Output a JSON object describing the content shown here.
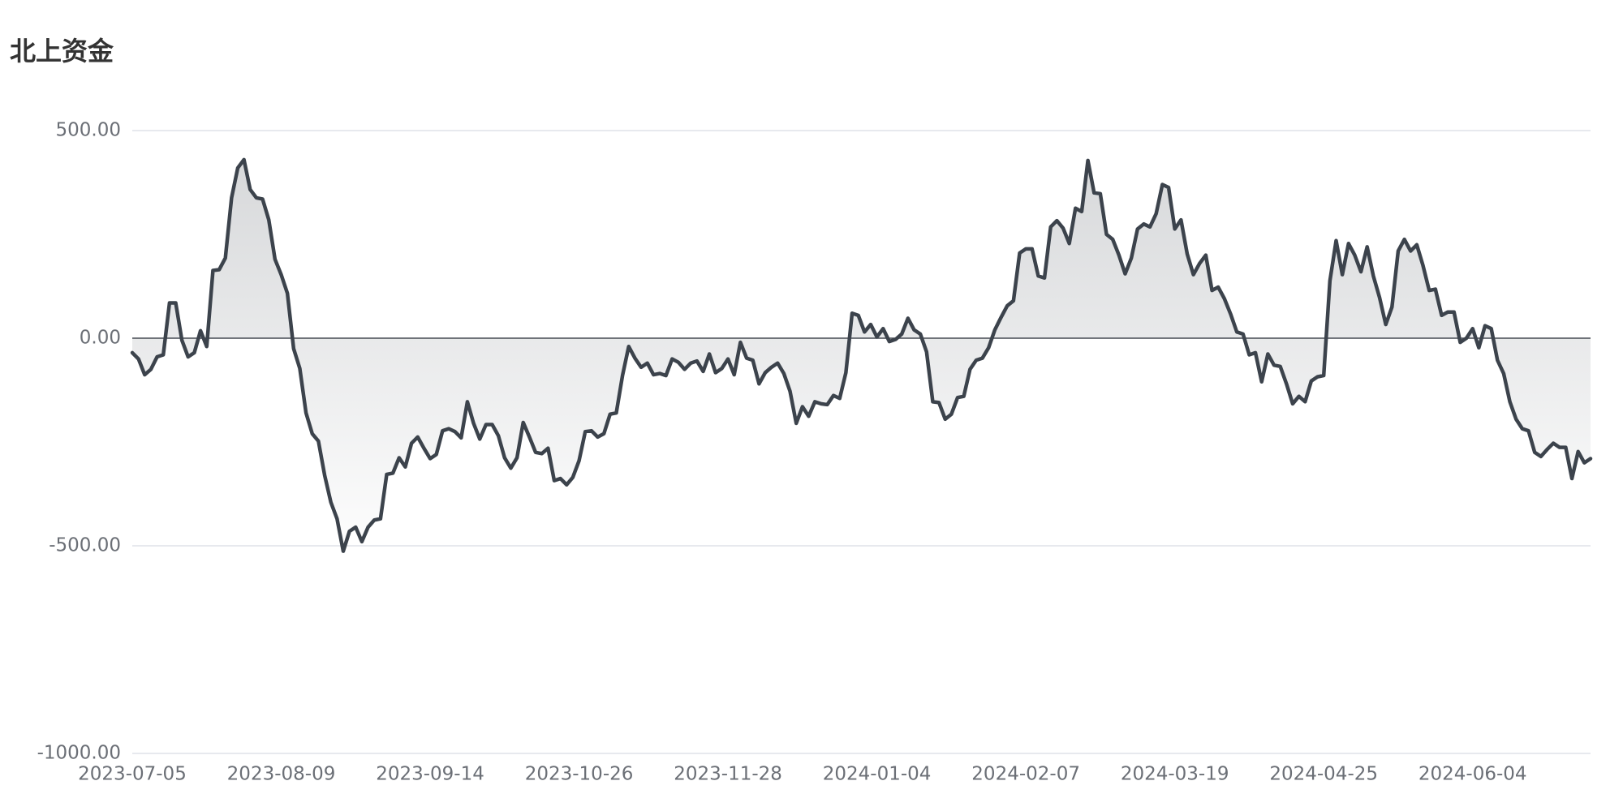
{
  "chart_data": {
    "type": "line",
    "title": "北上资金",
    "color": "#3c434c",
    "grid": true,
    "area": true,
    "ylim": [
      -1000,
      500
    ],
    "yticks": [
      {
        "value": 500,
        "label": "500.00"
      },
      {
        "value": 0,
        "label": "0.00"
      },
      {
        "value": -500,
        "label": "-500.00"
      },
      {
        "value": -1000,
        "label": "-1000.00"
      }
    ],
    "categories": [
      "2023-07-05",
      null,
      null,
      null,
      null,
      null,
      null,
      null,
      null,
      null,
      null,
      null,
      null,
      null,
      null,
      null,
      null,
      null,
      null,
      null,
      null,
      null,
      null,
      null,
      "2023-08-09",
      null,
      null,
      null,
      null,
      null,
      null,
      null,
      null,
      null,
      null,
      null,
      null,
      null,
      null,
      null,
      null,
      null,
      null,
      null,
      null,
      null,
      null,
      null,
      "2023-09-14",
      null,
      null,
      null,
      null,
      null,
      null,
      null,
      null,
      null,
      null,
      null,
      null,
      null,
      null,
      null,
      null,
      null,
      null,
      null,
      null,
      null,
      null,
      null,
      "2023-10-26",
      null,
      null,
      null,
      null,
      null,
      null,
      null,
      null,
      null,
      null,
      null,
      null,
      null,
      null,
      null,
      null,
      null,
      null,
      null,
      null,
      null,
      null,
      null,
      "2023-11-28",
      null,
      null,
      null,
      null,
      null,
      null,
      null,
      null,
      null,
      null,
      null,
      null,
      null,
      null,
      null,
      null,
      null,
      null,
      null,
      null,
      null,
      null,
      null,
      "2024-01-04",
      null,
      null,
      null,
      null,
      null,
      null,
      null,
      null,
      null,
      null,
      null,
      null,
      null,
      null,
      null,
      null,
      null,
      null,
      null,
      null,
      null,
      null,
      null,
      "2024-02-07",
      null,
      null,
      null,
      null,
      null,
      null,
      null,
      null,
      null,
      null,
      null,
      null,
      null,
      null,
      null,
      null,
      null,
      null,
      null,
      null,
      null,
      null,
      null,
      "2024-03-19",
      null,
      null,
      null,
      null,
      null,
      null,
      null,
      null,
      null,
      null,
      null,
      null,
      null,
      null,
      null,
      null,
      null,
      null,
      null,
      null,
      null,
      null,
      null,
      "2024-04-25",
      null,
      null,
      null,
      null,
      null,
      null,
      null,
      null,
      null,
      null,
      null,
      null,
      null,
      null,
      null,
      null,
      null,
      null,
      null,
      null,
      null,
      null,
      null,
      "2024-06-04",
      null,
      null,
      null,
      null,
      null,
      null,
      null,
      null,
      null,
      null,
      null,
      null,
      null,
      null,
      null,
      null,
      null,
      null,
      null
    ],
    "values": [
      -35,
      -50,
      -88,
      -75,
      -45,
      -40,
      85,
      85,
      -5,
      -45,
      -35,
      18,
      -20,
      163,
      165,
      193,
      338,
      410,
      430,
      358,
      338,
      335,
      285,
      190,
      153,
      108,
      -25,
      -73,
      -180,
      -230,
      -248,
      -330,
      -395,
      -435,
      -513,
      -465,
      -455,
      -490,
      -455,
      -438,
      -435,
      -328,
      -325,
      -288,
      -310,
      -253,
      -238,
      -265,
      -290,
      -280,
      -223,
      -218,
      -225,
      -240,
      -153,
      -205,
      -243,
      -208,
      -208,
      -235,
      -288,
      -313,
      -288,
      -203,
      -238,
      -275,
      -278,
      -265,
      -343,
      -338,
      -353,
      -335,
      -295,
      -225,
      -223,
      -238,
      -230,
      -183,
      -180,
      -90,
      -20,
      -48,
      -70,
      -60,
      -88,
      -85,
      -90,
      -50,
      -58,
      -75,
      -60,
      -55,
      -80,
      -38,
      -83,
      -73,
      -50,
      -88,
      -10,
      -48,
      -53,
      -110,
      -83,
      -70,
      -60,
      -85,
      -128,
      -205,
      -165,
      -188,
      -153,
      -158,
      -160,
      -138,
      -145,
      -83,
      60,
      55,
      15,
      33,
      3,
      23,
      -8,
      -3,
      10,
      48,
      20,
      10,
      -33,
      -153,
      -155,
      -195,
      -183,
      -143,
      -140,
      -75,
      -53,
      -48,
      -23,
      20,
      50,
      78,
      90,
      205,
      215,
      215,
      150,
      145,
      268,
      283,
      265,
      228,
      313,
      305,
      428,
      350,
      348,
      250,
      238,
      200,
      155,
      193,
      263,
      275,
      268,
      300,
      370,
      363,
      263,
      285,
      203,
      153,
      180,
      200,
      115,
      123,
      95,
      58,
      15,
      10,
      -40,
      -35,
      -105,
      -38,
      -65,
      -68,
      -110,
      -158,
      -140,
      -153,
      -103,
      -93,
      -90,
      138,
      235,
      153,
      228,
      200,
      160,
      220,
      150,
      98,
      33,
      75,
      210,
      238,
      210,
      225,
      175,
      115,
      118,
      55,
      63,
      63,
      -10,
      0,
      23,
      -23,
      30,
      23,
      -53,
      -85,
      -153,
      -195,
      -218,
      -223,
      -275,
      -285,
      -268,
      -253,
      -263,
      -263,
      -338,
      -273,
      -300,
      -290
    ]
  }
}
